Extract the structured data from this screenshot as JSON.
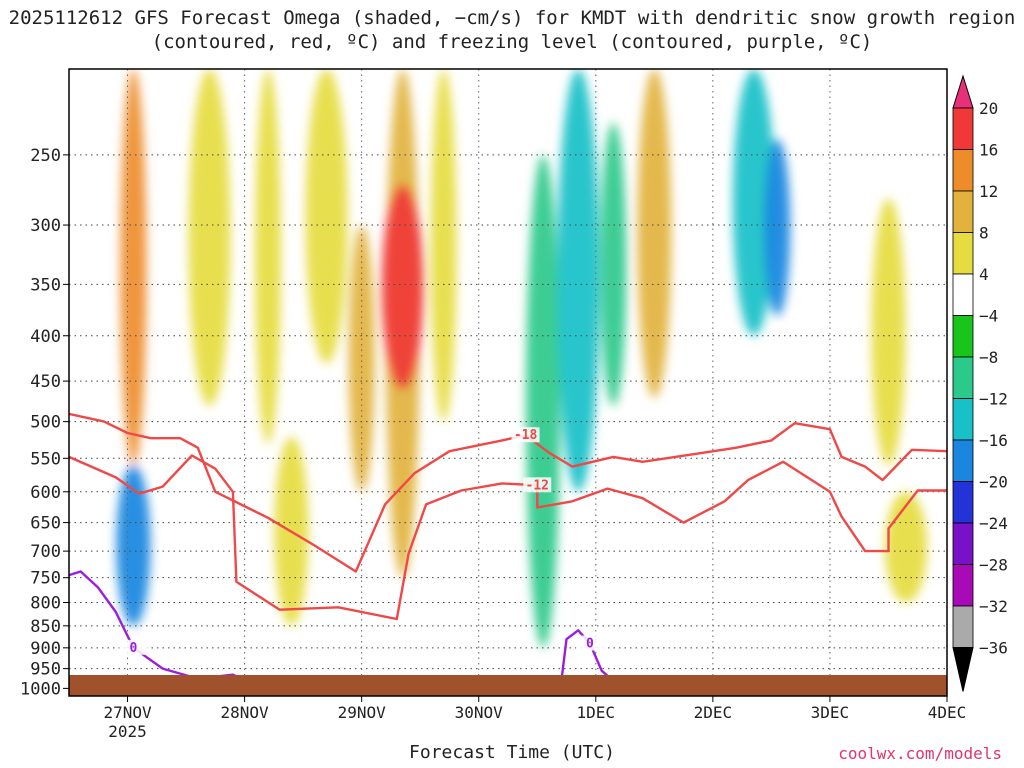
{
  "title": "2025112612 GFS Forecast Omega (shaded, −cm/s) for KMDT with dendritic snow growth region (contoured, red, ºC) and freezing level (contoured, purple, ºC)",
  "credit": "coolwx.com/models",
  "chart_data": {
    "type": "heatmap",
    "xlabel": "Forecast Time (UTC)",
    "ylabel": "",
    "x_ticks": [
      "27NOV",
      "28NOV",
      "29NOV",
      "30NOV",
      "1DEC",
      "2DEC",
      "3DEC",
      "4DEC"
    ],
    "x_year_label": "2025",
    "xlim_days": [
      26.5,
      34.0
    ],
    "y_ticks": [
      250,
      300,
      350,
      400,
      450,
      500,
      550,
      600,
      650,
      700,
      750,
      800,
      850,
      900,
      950,
      1000
    ],
    "ylim_hpa": [
      200,
      1020
    ],
    "y_scale": "log-pressure (inverted)",
    "grid": "dotted",
    "colorbar": {
      "ticks": [
        "20",
        "16",
        "12",
        "8",
        "4",
        "−4",
        "−8",
        "−12",
        "−16",
        "−20",
        "−24",
        "−28",
        "−32",
        "−36"
      ],
      "colors": [
        "#e8307a",
        "#f03838",
        "#ee8c2a",
        "#e2b23c",
        "#e6dc40",
        "#ffffff",
        "#19c41b",
        "#2bc98a",
        "#18c0c8",
        "#1a86e0",
        "#2333d8",
        "#7812c8",
        "#a80ab8",
        "#aaaaaa",
        "#000000"
      ]
    },
    "omega_regions": [
      {
        "day": 27.05,
        "p1": 200,
        "p2": 560,
        "value": 15
      },
      {
        "day": 27.05,
        "p1": 560,
        "p2": 850,
        "value": -18
      },
      {
        "day": 27.7,
        "p1": 200,
        "p2": 480,
        "value": 6
      },
      {
        "day": 28.2,
        "p1": 200,
        "p2": 530,
        "value": 7
      },
      {
        "day": 28.4,
        "p1": 520,
        "p2": 850,
        "value": 6
      },
      {
        "day": 28.7,
        "p1": 200,
        "p2": 430,
        "value": 6
      },
      {
        "day": 29.0,
        "p1": 300,
        "p2": 600,
        "value": 9
      },
      {
        "day": 29.35,
        "p1": 200,
        "p2": 750,
        "value": 11
      },
      {
        "day": 29.35,
        "p1": 270,
        "p2": 460,
        "value": 17
      },
      {
        "day": 29.7,
        "p1": 200,
        "p2": 500,
        "value": 7
      },
      {
        "day": 30.55,
        "p1": 250,
        "p2": 900,
        "value": -10
      },
      {
        "day": 30.85,
        "p1": 200,
        "p2": 600,
        "value": -14
      },
      {
        "day": 31.15,
        "p1": 230,
        "p2": 480,
        "value": -9
      },
      {
        "day": 31.5,
        "p1": 200,
        "p2": 470,
        "value": 9
      },
      {
        "day": 32.35,
        "p1": 200,
        "p2": 400,
        "value": -14
      },
      {
        "day": 32.55,
        "p1": 240,
        "p2": 380,
        "value": -16
      },
      {
        "day": 33.5,
        "p1": 280,
        "p2": 560,
        "value": 5
      },
      {
        "day": 33.65,
        "p1": 600,
        "p2": 800,
        "value": 5
      }
    ],
    "contours": [
      {
        "label": "-12",
        "color": "#f04848",
        "points": [
          [
            26.5,
            548
          ],
          [
            26.9,
            578
          ],
          [
            27.1,
            603
          ],
          [
            27.3,
            592
          ],
          [
            27.55,
            546
          ],
          [
            27.75,
            565
          ],
          [
            27.9,
            600
          ],
          [
            27.93,
            758
          ],
          [
            28.3,
            815
          ],
          [
            28.8,
            810
          ],
          [
            29.3,
            835
          ],
          [
            29.4,
            705
          ],
          [
            29.55,
            620
          ],
          [
            29.85,
            598
          ],
          [
            30.2,
            587
          ],
          [
            30.5,
            590
          ],
          [
            30.5,
            625
          ],
          [
            30.8,
            615
          ],
          [
            31.1,
            595
          ],
          [
            31.4,
            610
          ],
          [
            31.75,
            650
          ],
          [
            32.1,
            615
          ],
          [
            32.3,
            582
          ],
          [
            32.6,
            555
          ],
          [
            33.0,
            600
          ],
          [
            33.1,
            640
          ],
          [
            33.3,
            700
          ],
          [
            33.5,
            700
          ],
          [
            33.5,
            660
          ],
          [
            33.75,
            598
          ],
          [
            34.0,
            598
          ]
        ]
      },
      {
        "label": "-18",
        "color": "#f04848",
        "points": [
          [
            26.5,
            490
          ],
          [
            26.8,
            500
          ],
          [
            27.0,
            515
          ],
          [
            27.2,
            522
          ],
          [
            27.45,
            522
          ],
          [
            27.6,
            535
          ],
          [
            27.75,
            600
          ],
          [
            28.2,
            642
          ],
          [
            28.6,
            690
          ],
          [
            28.95,
            738
          ],
          [
            29.2,
            620
          ],
          [
            29.45,
            572
          ],
          [
            29.75,
            540
          ],
          [
            30.2,
            525
          ],
          [
            30.4,
            518
          ],
          [
            30.6,
            542
          ],
          [
            30.8,
            562
          ],
          [
            31.15,
            548
          ],
          [
            31.4,
            555
          ],
          [
            31.8,
            545
          ],
          [
            32.2,
            535
          ],
          [
            32.5,
            525
          ],
          [
            32.7,
            502
          ],
          [
            33.0,
            510
          ],
          [
            33.1,
            548
          ],
          [
            33.3,
            562
          ],
          [
            33.45,
            582
          ],
          [
            33.7,
            538
          ],
          [
            34.0,
            540
          ]
        ]
      },
      {
        "label": "0",
        "color": "#9b1ee0",
        "points": [
          [
            26.5,
            745
          ],
          [
            26.6,
            738
          ],
          [
            26.75,
            770
          ],
          [
            26.9,
            820
          ],
          [
            27.05,
            900
          ],
          [
            27.3,
            950
          ],
          [
            27.6,
            975
          ],
          [
            27.9,
            965
          ],
          [
            28.2,
            1005
          ]
        ]
      },
      {
        "label": "0",
        "color": "#9b1ee0",
        "points": [
          [
            30.7,
            995
          ],
          [
            30.75,
            880
          ],
          [
            30.85,
            860
          ],
          [
            30.95,
            890
          ],
          [
            31.05,
            955
          ],
          [
            31.2,
            995
          ]
        ]
      }
    ]
  }
}
